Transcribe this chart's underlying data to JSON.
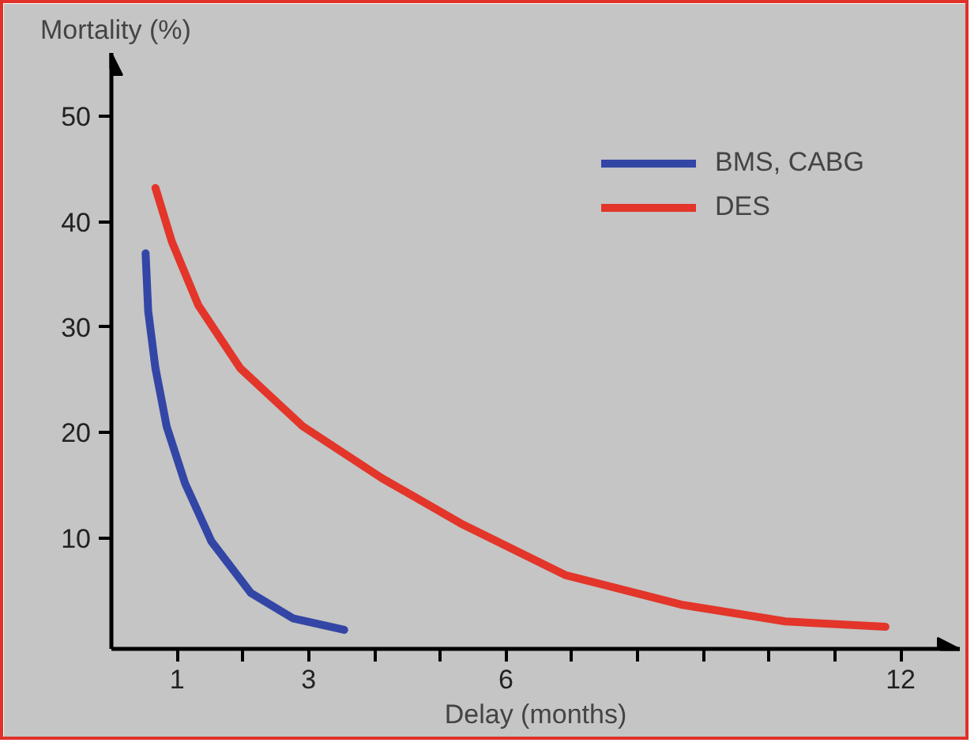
{
  "chart_data": {
    "type": "line",
    "xlabel": "Delay (months)",
    "ylabel": "Mortality (%)",
    "xlim": [
      0,
      12.9
    ],
    "ylim": [
      -0.5,
      56
    ],
    "xticks": [
      1,
      {
        "value": 2,
        "label": null
      },
      3,
      {
        "value": 4,
        "label": null
      },
      {
        "value": 5,
        "label": null
      },
      6,
      {
        "value": 7,
        "label": null
      },
      {
        "value": 8,
        "label": null
      },
      {
        "value": 9,
        "label": null
      },
      {
        "value": 10,
        "label": null
      },
      {
        "value": 11,
        "label": null
      },
      12
    ],
    "yticks": [
      10,
      20,
      30,
      40,
      50
    ],
    "grid": false,
    "legend": "top right",
    "marker": "none",
    "line_style": "solid",
    "series": [
      {
        "name": "BMS, CABG",
        "color": "#3346a6",
        "x": [
          0.52,
          0.56,
          0.67,
          0.84,
          1.12,
          1.52,
          2.12,
          2.76,
          3.54
        ],
        "values": [
          37.0,
          31.5,
          26.1,
          20.6,
          15.2,
          9.7,
          4.8,
          2.4,
          1.3
        ]
      },
      {
        "name": "DES",
        "color": "#e3352a",
        "x": [
          0.67,
          0.92,
          1.32,
          1.96,
          2.91,
          4.11,
          5.31,
          6.9,
          8.66,
          10.25,
          11.77
        ],
        "values": [
          43.2,
          38.1,
          32.1,
          26.1,
          20.6,
          15.7,
          11.4,
          6.5,
          3.7,
          2.1,
          1.6
        ]
      }
    ]
  }
}
